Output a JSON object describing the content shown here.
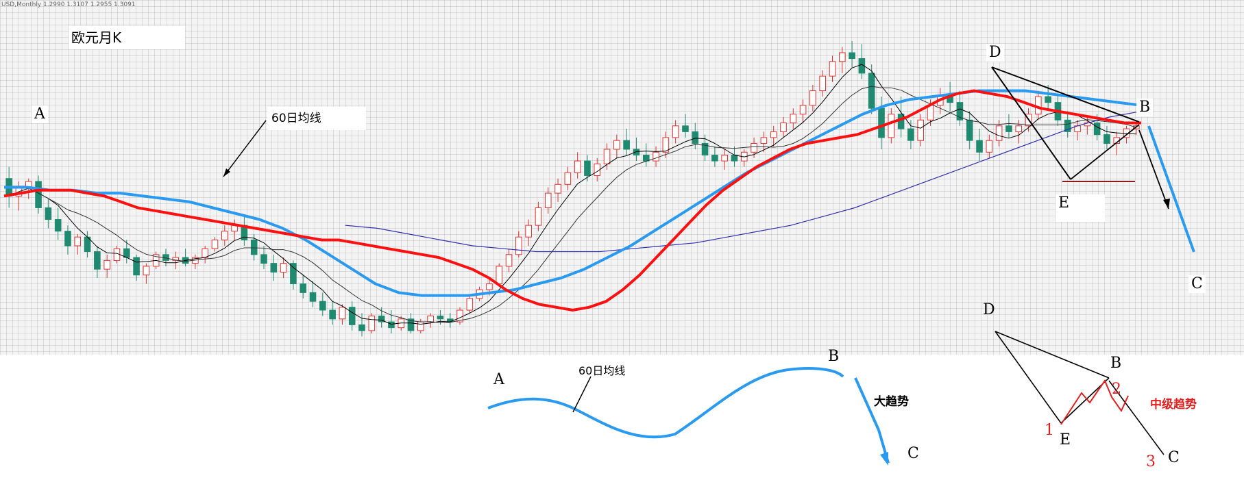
{
  "instrument_label": "USD,Monthly  1.2990 1.3107 1.2955 1.3091",
  "chart_title": "欧元月K",
  "annotations": {
    "ma60_label": "60日均线",
    "ma60_label_sketch": "60日均线",
    "big_trend": "大趋势",
    "mid_trend": "中级趋势",
    "point_A": "A",
    "point_B": "B",
    "point_C": "C",
    "point_D": "D",
    "point_E": "E",
    "sketch_A": "A",
    "sketch_B": "B",
    "sketch_C": "C",
    "mid_D": "D",
    "mid_B": "B",
    "mid_E": "E",
    "mid_C": "C",
    "wave_1": "1",
    "wave_2": "2",
    "wave_3": "3"
  },
  "colors": {
    "bull_candle": "#e03030",
    "bear_candle": "#1f8a70",
    "ma_red": "#ff1010",
    "ma_blue": "#2a9af0",
    "ma_navy": "#3030b0",
    "ma_black": "#000000",
    "support_line": "#8b1a1a",
    "annotation_red": "#e02020"
  },
  "chart_data": {
    "type": "line",
    "title": "欧元月K",
    "xlabel": "",
    "ylabel": "",
    "grid": true,
    "candles": [
      {
        "o": 56,
        "h": 60,
        "l": 46,
        "c": 50
      },
      {
        "o": 50,
        "h": 55,
        "l": 45,
        "c": 53
      },
      {
        "o": 53,
        "h": 56,
        "l": 49,
        "c": 55
      },
      {
        "o": 55,
        "h": 57,
        "l": 44,
        "c": 46
      },
      {
        "o": 46,
        "h": 49,
        "l": 39,
        "c": 42
      },
      {
        "o": 42,
        "h": 46,
        "l": 35,
        "c": 38
      },
      {
        "o": 38,
        "h": 40,
        "l": 30,
        "c": 33
      },
      {
        "o": 33,
        "h": 37,
        "l": 30,
        "c": 36
      },
      {
        "o": 36,
        "h": 38,
        "l": 29,
        "c": 31
      },
      {
        "o": 31,
        "h": 33,
        "l": 22,
        "c": 25
      },
      {
        "o": 25,
        "h": 30,
        "l": 22,
        "c": 28
      },
      {
        "o": 28,
        "h": 33,
        "l": 27,
        "c": 32
      },
      {
        "o": 32,
        "h": 35,
        "l": 27,
        "c": 29
      },
      {
        "o": 29,
        "h": 30,
        "l": 21,
        "c": 23
      },
      {
        "o": 23,
        "h": 27,
        "l": 20,
        "c": 26
      },
      {
        "o": 26,
        "h": 31,
        "l": 25,
        "c": 30
      },
      {
        "o": 30,
        "h": 32,
        "l": 26,
        "c": 28
      },
      {
        "o": 28,
        "h": 31,
        "l": 25,
        "c": 29
      },
      {
        "o": 29,
        "h": 32,
        "l": 26,
        "c": 27
      },
      {
        "o": 27,
        "h": 30,
        "l": 25,
        "c": 29
      },
      {
        "o": 29,
        "h": 33,
        "l": 27,
        "c": 32
      },
      {
        "o": 32,
        "h": 36,
        "l": 31,
        "c": 35
      },
      {
        "o": 35,
        "h": 40,
        "l": 33,
        "c": 38
      },
      {
        "o": 38,
        "h": 42,
        "l": 35,
        "c": 40
      },
      {
        "o": 40,
        "h": 43,
        "l": 33,
        "c": 35
      },
      {
        "o": 35,
        "h": 37,
        "l": 28,
        "c": 30
      },
      {
        "o": 30,
        "h": 33,
        "l": 25,
        "c": 27
      },
      {
        "o": 27,
        "h": 30,
        "l": 21,
        "c": 24
      },
      {
        "o": 24,
        "h": 29,
        "l": 22,
        "c": 27
      },
      {
        "o": 27,
        "h": 28,
        "l": 18,
        "c": 20
      },
      {
        "o": 20,
        "h": 23,
        "l": 15,
        "c": 17
      },
      {
        "o": 17,
        "h": 21,
        "l": 12,
        "c": 14
      },
      {
        "o": 14,
        "h": 17,
        "l": 9,
        "c": 11
      },
      {
        "o": 11,
        "h": 14,
        "l": 6,
        "c": 8
      },
      {
        "o": 8,
        "h": 13,
        "l": 6,
        "c": 12
      },
      {
        "o": 12,
        "h": 14,
        "l": 4,
        "c": 6
      },
      {
        "o": 6,
        "h": 10,
        "l": 2,
        "c": 4
      },
      {
        "o": 4,
        "h": 10,
        "l": 3,
        "c": 9
      },
      {
        "o": 9,
        "h": 12,
        "l": 5,
        "c": 7
      },
      {
        "o": 7,
        "h": 11,
        "l": 3,
        "c": 5
      },
      {
        "o": 5,
        "h": 9,
        "l": 4,
        "c": 8
      },
      {
        "o": 8,
        "h": 10,
        "l": 3,
        "c": 4
      },
      {
        "o": 4,
        "h": 8,
        "l": 3,
        "c": 7
      },
      {
        "o": 7,
        "h": 10,
        "l": 5,
        "c": 9
      },
      {
        "o": 9,
        "h": 11,
        "l": 6,
        "c": 8
      },
      {
        "o": 8,
        "h": 10,
        "l": 5,
        "c": 7
      },
      {
        "o": 7,
        "h": 12,
        "l": 6,
        "c": 11
      },
      {
        "o": 11,
        "h": 16,
        "l": 10,
        "c": 15
      },
      {
        "o": 15,
        "h": 19,
        "l": 14,
        "c": 18
      },
      {
        "o": 18,
        "h": 22,
        "l": 16,
        "c": 20
      },
      {
        "o": 20,
        "h": 27,
        "l": 19,
        "c": 26
      },
      {
        "o": 26,
        "h": 32,
        "l": 24,
        "c": 30
      },
      {
        "o": 30,
        "h": 38,
        "l": 29,
        "c": 36
      },
      {
        "o": 36,
        "h": 42,
        "l": 33,
        "c": 40
      },
      {
        "o": 40,
        "h": 48,
        "l": 38,
        "c": 46
      },
      {
        "o": 46,
        "h": 53,
        "l": 44,
        "c": 51
      },
      {
        "o": 51,
        "h": 56,
        "l": 48,
        "c": 54
      },
      {
        "o": 54,
        "h": 60,
        "l": 52,
        "c": 58
      },
      {
        "o": 58,
        "h": 65,
        "l": 56,
        "c": 62
      },
      {
        "o": 62,
        "h": 64,
        "l": 55,
        "c": 57
      },
      {
        "o": 57,
        "h": 63,
        "l": 55,
        "c": 61
      },
      {
        "o": 61,
        "h": 68,
        "l": 59,
        "c": 66
      },
      {
        "o": 66,
        "h": 71,
        "l": 63,
        "c": 69
      },
      {
        "o": 69,
        "h": 73,
        "l": 64,
        "c": 66
      },
      {
        "o": 66,
        "h": 70,
        "l": 62,
        "c": 64
      },
      {
        "o": 64,
        "h": 68,
        "l": 60,
        "c": 62
      },
      {
        "o": 62,
        "h": 67,
        "l": 60,
        "c": 65
      },
      {
        "o": 65,
        "h": 72,
        "l": 63,
        "c": 70
      },
      {
        "o": 70,
        "h": 76,
        "l": 68,
        "c": 74
      },
      {
        "o": 74,
        "h": 78,
        "l": 70,
        "c": 72
      },
      {
        "o": 72,
        "h": 75,
        "l": 66,
        "c": 68
      },
      {
        "o": 68,
        "h": 71,
        "l": 62,
        "c": 64
      },
      {
        "o": 64,
        "h": 67,
        "l": 60,
        "c": 62
      },
      {
        "o": 62,
        "h": 66,
        "l": 59,
        "c": 64
      },
      {
        "o": 64,
        "h": 67,
        "l": 60,
        "c": 62
      },
      {
        "o": 62,
        "h": 66,
        "l": 60,
        "c": 65
      },
      {
        "o": 65,
        "h": 70,
        "l": 63,
        "c": 68
      },
      {
        "o": 68,
        "h": 72,
        "l": 65,
        "c": 70
      },
      {
        "o": 70,
        "h": 74,
        "l": 67,
        "c": 72
      },
      {
        "o": 72,
        "h": 77,
        "l": 70,
        "c": 75
      },
      {
        "o": 75,
        "h": 80,
        "l": 73,
        "c": 78
      },
      {
        "o": 78,
        "h": 83,
        "l": 75,
        "c": 81
      },
      {
        "o": 81,
        "h": 88,
        "l": 79,
        "c": 86
      },
      {
        "o": 86,
        "h": 93,
        "l": 84,
        "c": 91
      },
      {
        "o": 91,
        "h": 98,
        "l": 89,
        "c": 96
      },
      {
        "o": 96,
        "h": 101,
        "l": 92,
        "c": 99
      },
      {
        "o": 99,
        "h": 103,
        "l": 94,
        "c": 97
      },
      {
        "o": 97,
        "h": 102,
        "l": 90,
        "c": 92
      },
      {
        "o": 92,
        "h": 95,
        "l": 78,
        "c": 80
      },
      {
        "o": 80,
        "h": 84,
        "l": 66,
        "c": 70
      },
      {
        "o": 70,
        "h": 80,
        "l": 68,
        "c": 78
      },
      {
        "o": 78,
        "h": 84,
        "l": 70,
        "c": 73
      },
      {
        "o": 73,
        "h": 76,
        "l": 66,
        "c": 69
      },
      {
        "o": 69,
        "h": 78,
        "l": 67,
        "c": 76
      },
      {
        "o": 76,
        "h": 83,
        "l": 74,
        "c": 81
      },
      {
        "o": 81,
        "h": 87,
        "l": 78,
        "c": 84
      },
      {
        "o": 84,
        "h": 89,
        "l": 79,
        "c": 82
      },
      {
        "o": 82,
        "h": 86,
        "l": 74,
        "c": 76
      },
      {
        "o": 76,
        "h": 79,
        "l": 66,
        "c": 69
      },
      {
        "o": 69,
        "h": 73,
        "l": 62,
        "c": 65
      },
      {
        "o": 65,
        "h": 71,
        "l": 63,
        "c": 69
      },
      {
        "o": 69,
        "h": 76,
        "l": 67,
        "c": 74
      },
      {
        "o": 74,
        "h": 78,
        "l": 70,
        "c": 72
      },
      {
        "o": 72,
        "h": 76,
        "l": 68,
        "c": 74
      },
      {
        "o": 74,
        "h": 80,
        "l": 72,
        "c": 78
      },
      {
        "o": 78,
        "h": 86,
        "l": 76,
        "c": 84
      },
      {
        "o": 84,
        "h": 88,
        "l": 80,
        "c": 82
      },
      {
        "o": 82,
        "h": 85,
        "l": 74,
        "c": 76
      },
      {
        "o": 76,
        "h": 79,
        "l": 70,
        "c": 72
      },
      {
        "o": 72,
        "h": 76,
        "l": 69,
        "c": 74
      },
      {
        "o": 74,
        "h": 77,
        "l": 71,
        "c": 75
      },
      {
        "o": 75,
        "h": 78,
        "l": 69,
        "c": 71
      },
      {
        "o": 71,
        "h": 74,
        "l": 66,
        "c": 68
      },
      {
        "o": 68,
        "h": 72,
        "l": 64,
        "c": 70
      },
      {
        "o": 70,
        "h": 74,
        "l": 68,
        "c": 73
      },
      {
        "o": 73,
        "h": 76,
        "l": 71,
        "c": 74
      }
    ],
    "ma_red": [
      50,
      51,
      52,
      52,
      52,
      51,
      50,
      48,
      46,
      45,
      44,
      43,
      42,
      41,
      40,
      39,
      38,
      37,
      36,
      35,
      35,
      34,
      33,
      32,
      31,
      30,
      29,
      27,
      25,
      22,
      18,
      15,
      13,
      12,
      11,
      12,
      14,
      18,
      23,
      29,
      35,
      41,
      47,
      52,
      56,
      60,
      63,
      66,
      68,
      69,
      70,
      71,
      73,
      75,
      77,
      80,
      83,
      85,
      86,
      85,
      84,
      82,
      80,
      79,
      78,
      77,
      76,
      75,
      75
    ],
    "ma_blue": [
      53,
      53,
      52,
      52,
      51,
      51,
      50,
      49,
      48,
      46,
      44,
      42,
      39,
      35,
      30,
      25,
      20,
      17,
      16,
      16,
      16,
      17,
      18,
      20,
      22,
      25,
      29,
      33,
      38,
      43,
      48,
      53,
      58,
      62,
      66,
      70,
      74,
      78,
      81,
      83,
      84,
      85,
      86,
      86,
      86,
      85,
      84,
      83,
      82,
      81
    ],
    "ma_navy": [
      40,
      39,
      37,
      35,
      33,
      32,
      31,
      31,
      31,
      32,
      33,
      34,
      36,
      38,
      40,
      43,
      46,
      50,
      54,
      58,
      62,
      66,
      70,
      74,
      77,
      79
    ],
    "ylim": [
      0,
      110
    ]
  }
}
